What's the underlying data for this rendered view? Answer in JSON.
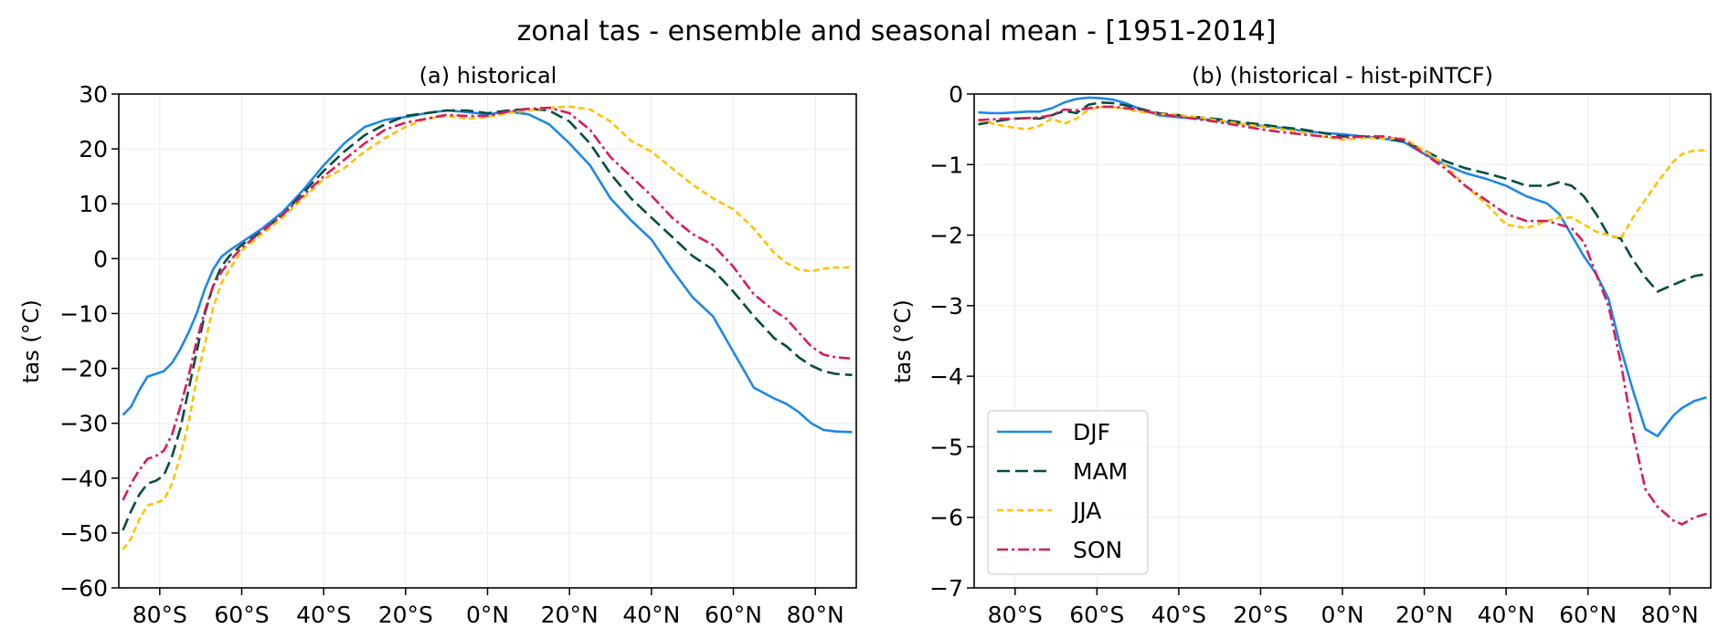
{
  "suptitle": "zonal tas - ensemble and seasonal mean - [1951-2014]",
  "chart_data": [
    {
      "type": "line",
      "title": "(a) historical",
      "xlabel": "",
      "ylabel": "tas (°C)",
      "xlim": [
        -90,
        90
      ],
      "ylim": [
        -60,
        30
      ],
      "grid": true,
      "xticks": [
        -80,
        -60,
        -40,
        -20,
        0,
        20,
        40,
        60,
        80
      ],
      "xtick_labels": [
        "80°S",
        "60°S",
        "40°S",
        "20°S",
        "0°N",
        "20°N",
        "40°N",
        "60°N",
        "80°N"
      ],
      "yticks": [
        -60,
        -50,
        -40,
        -30,
        -20,
        -10,
        0,
        10,
        20,
        30
      ],
      "ytick_labels": [
        "−60",
        "−50",
        "−40",
        "−30",
        "−20",
        "−10",
        "0",
        "10",
        "20",
        "30"
      ],
      "x": [
        -89,
        -87,
        -85,
        -83,
        -81,
        -79,
        -77,
        -75,
        -73,
        -71,
        -69,
        -67,
        -65,
        -63,
        -60,
        -55,
        -50,
        -45,
        -40,
        -35,
        -30,
        -25,
        -20,
        -15,
        -10,
        -5,
        0,
        5,
        10,
        15,
        20,
        25,
        30,
        35,
        40,
        45,
        50,
        55,
        60,
        65,
        70,
        73,
        76,
        79,
        82,
        85,
        89
      ],
      "series": [
        {
          "name": "DJF",
          "color": "#1E88E5",
          "dash": "solid",
          "values": [
            -28.5,
            -27,
            -24,
            -21.5,
            -21,
            -20.5,
            -19,
            -16.5,
            -13.5,
            -10,
            -5.5,
            -2,
            0.3,
            1.5,
            3,
            5.5,
            8.5,
            12.5,
            17,
            21,
            24,
            25.3,
            25.8,
            26.5,
            27,
            26.7,
            26.3,
            26.8,
            26.3,
            24.5,
            21,
            17,
            11,
            7,
            3.5,
            -2,
            -7,
            -10.5,
            -17,
            -23.5,
            -25.5,
            -26.5,
            -28,
            -30,
            -31.2,
            -31.5,
            -31.6
          ]
        },
        {
          "name": "MAM",
          "color": "#004D40",
          "dash": "longdash",
          "values": [
            -49.5,
            -46,
            -43,
            -41,
            -40.5,
            -39.5,
            -36,
            -31,
            -24,
            -17,
            -10,
            -5,
            -1.5,
            0.5,
            2.5,
            5,
            8,
            12,
            16,
            19.5,
            22.5,
            24.5,
            26,
            26.5,
            27,
            27,
            26.5,
            27,
            27.3,
            27,
            25,
            21,
            15.5,
            11,
            7.5,
            4,
            0.5,
            -2,
            -6,
            -10.5,
            -14.5,
            -16,
            -18,
            -19.5,
            -20.5,
            -21,
            -21.2
          ]
        },
        {
          "name": "JJA",
          "color": "#FFC107",
          "dash": "shortdash",
          "values": [
            -53,
            -51,
            -47.5,
            -45,
            -44.5,
            -44,
            -41,
            -36,
            -30,
            -22,
            -15.5,
            -9,
            -4.5,
            -2,
            1.5,
            4.5,
            7.5,
            11,
            14.5,
            16.5,
            19.5,
            22,
            24,
            25.5,
            26,
            25.5,
            25.8,
            26.5,
            27,
            27.5,
            27.7,
            27.2,
            25,
            21.5,
            19.5,
            16.5,
            13.5,
            11,
            9,
            5.5,
            1,
            -0.8,
            -2,
            -2.3,
            -1.8,
            -1.6,
            -1.6
          ]
        },
        {
          "name": "SON",
          "color": "#D81B60",
          "dash": "dashdot",
          "values": [
            -44,
            -41,
            -38.5,
            -36.5,
            -36,
            -35,
            -32,
            -27,
            -21.5,
            -15,
            -9.5,
            -5,
            -2.5,
            -0.5,
            2,
            5,
            8,
            11.5,
            15,
            18,
            21,
            23.5,
            24.8,
            25.5,
            26.2,
            26,
            26,
            26.8,
            27.3,
            27.5,
            26.5,
            23.5,
            18.5,
            15,
            11.5,
            7.5,
            4.5,
            2.5,
            -1.5,
            -6.5,
            -9.5,
            -11,
            -13.5,
            -16,
            -17.5,
            -18,
            -18.2
          ]
        }
      ]
    },
    {
      "type": "line",
      "title": "(b) (historical - hist-piNTCF)",
      "xlabel": "",
      "ylabel": "tas (°C)",
      "xlim": [
        -90,
        90
      ],
      "ylim": [
        -7,
        0
      ],
      "grid": true,
      "legend": {
        "placement": "lower-left",
        "entries": [
          "DJF",
          "MAM",
          "JJA",
          "SON"
        ]
      },
      "xticks": [
        -80,
        -60,
        -40,
        -20,
        0,
        20,
        40,
        60,
        80
      ],
      "xtick_labels": [
        "80°S",
        "60°S",
        "40°S",
        "20°S",
        "0°N",
        "20°N",
        "40°N",
        "60°N",
        "80°N"
      ],
      "yticks": [
        -7,
        -6,
        -5,
        -4,
        -3,
        -2,
        -1,
        0
      ],
      "ytick_labels": [
        "−7",
        "−6",
        "−5",
        "−4",
        "−3",
        "−2",
        "−1",
        "0"
      ],
      "x": [
        -89,
        -86,
        -83,
        -80,
        -77,
        -74,
        -71,
        -68,
        -65,
        -62,
        -59,
        -56,
        -53,
        -50,
        -45,
        -40,
        -35,
        -30,
        -25,
        -20,
        -15,
        -10,
        -5,
        0,
        5,
        10,
        15,
        20,
        25,
        30,
        35,
        40,
        45,
        50,
        53,
        56,
        59,
        62,
        65,
        68,
        71,
        74,
        77,
        79,
        81,
        83,
        86,
        89
      ],
      "series": [
        {
          "name": "DJF",
          "color": "#1E88E5",
          "dash": "solid",
          "values": [
            -0.26,
            -0.27,
            -0.27,
            -0.26,
            -0.25,
            -0.25,
            -0.2,
            -0.12,
            -0.07,
            -0.05,
            -0.06,
            -0.08,
            -0.13,
            -0.2,
            -0.3,
            -0.33,
            -0.35,
            -0.38,
            -0.42,
            -0.45,
            -0.48,
            -0.52,
            -0.55,
            -0.57,
            -0.6,
            -0.63,
            -0.68,
            -0.85,
            -1.0,
            -1.12,
            -1.2,
            -1.3,
            -1.45,
            -1.55,
            -1.7,
            -2.0,
            -2.3,
            -2.55,
            -2.9,
            -3.6,
            -4.2,
            -4.75,
            -4.85,
            -4.7,
            -4.55,
            -4.45,
            -4.35,
            -4.3
          ]
        },
        {
          "name": "MAM",
          "color": "#004D40",
          "dash": "longdash",
          "values": [
            -0.43,
            -0.4,
            -0.37,
            -0.35,
            -0.34,
            -0.35,
            -0.3,
            -0.24,
            -0.27,
            -0.15,
            -0.12,
            -0.13,
            -0.16,
            -0.2,
            -0.27,
            -0.3,
            -0.33,
            -0.36,
            -0.4,
            -0.43,
            -0.47,
            -0.5,
            -0.55,
            -0.6,
            -0.6,
            -0.63,
            -0.67,
            -0.8,
            -0.95,
            -1.05,
            -1.12,
            -1.2,
            -1.3,
            -1.3,
            -1.25,
            -1.3,
            -1.45,
            -1.7,
            -2.0,
            -2.05,
            -2.35,
            -2.6,
            -2.8,
            -2.75,
            -2.7,
            -2.65,
            -2.58,
            -2.55
          ]
        },
        {
          "name": "JJA",
          "color": "#FFC107",
          "dash": "shortdash",
          "values": [
            -0.37,
            -0.41,
            -0.45,
            -0.48,
            -0.5,
            -0.45,
            -0.35,
            -0.42,
            -0.35,
            -0.22,
            -0.18,
            -0.19,
            -0.21,
            -0.25,
            -0.28,
            -0.3,
            -0.33,
            -0.38,
            -0.42,
            -0.46,
            -0.5,
            -0.54,
            -0.6,
            -0.65,
            -0.62,
            -0.63,
            -0.63,
            -0.8,
            -1.0,
            -1.3,
            -1.55,
            -1.85,
            -1.9,
            -1.8,
            -1.75,
            -1.75,
            -1.85,
            -1.95,
            -2.0,
            -2.05,
            -1.75,
            -1.5,
            -1.25,
            -1.1,
            -0.95,
            -0.85,
            -0.8,
            -0.8
          ]
        },
        {
          "name": "SON",
          "color": "#D81B60",
          "dash": "dashdot",
          "values": [
            -0.37,
            -0.36,
            -0.35,
            -0.35,
            -0.34,
            -0.33,
            -0.3,
            -0.22,
            -0.23,
            -0.2,
            -0.18,
            -0.18,
            -0.2,
            -0.22,
            -0.28,
            -0.32,
            -0.36,
            -0.4,
            -0.45,
            -0.5,
            -0.54,
            -0.57,
            -0.6,
            -0.62,
            -0.6,
            -0.6,
            -0.65,
            -0.85,
            -1.05,
            -1.3,
            -1.5,
            -1.7,
            -1.8,
            -1.8,
            -1.85,
            -1.9,
            -2.1,
            -2.55,
            -3.0,
            -3.8,
            -4.8,
            -5.6,
            -5.85,
            -5.95,
            -6.05,
            -6.1,
            -6.0,
            -5.95
          ]
        }
      ]
    }
  ]
}
